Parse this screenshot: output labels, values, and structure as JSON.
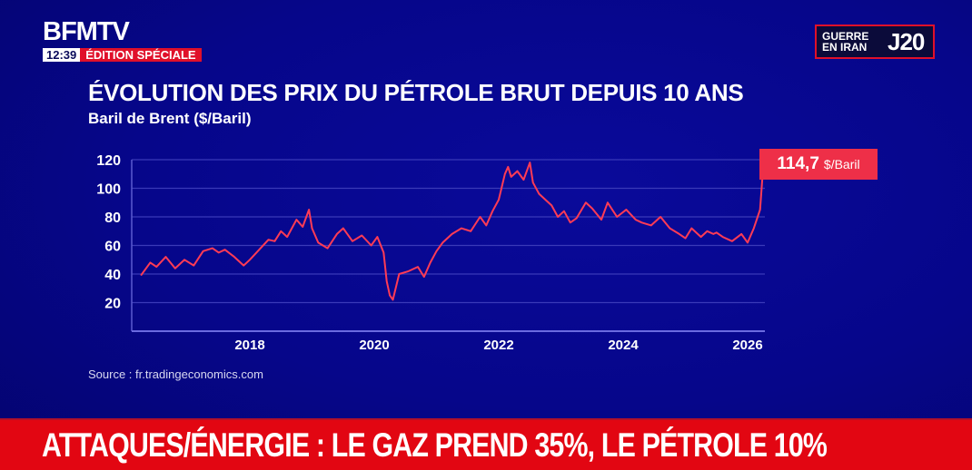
{
  "header": {
    "channel": "BFMTV",
    "time": "12:39",
    "edition": "ÉDITION SPÉCIALE",
    "badge_label_line1": "GUERRE",
    "badge_label_line2": "EN IRAN",
    "badge_day": "J20"
  },
  "callout": {
    "value": "114,7",
    "unit": "$/Baril"
  },
  "source": "Source : fr.tradingeconomics.com",
  "ticker": "ATTAQUES/ÉNERGIE : LE GAZ PREND 35%, LE PÉTROLE 10%",
  "colors": {
    "background": "#06068a",
    "line": "#ff3b55",
    "accent_red": "#e20612",
    "callout": "#ee2f48"
  },
  "chart_data": {
    "type": "line",
    "title": "ÉVOLUTION DES PRIX DU PÉTROLE BRUT DEPUIS 10 ANS",
    "subtitle": "Baril de Brent ($/Baril)",
    "xlabel": "",
    "ylabel": "",
    "ylim": [
      0,
      120
    ],
    "yticks": [
      20,
      40,
      60,
      80,
      100,
      120
    ],
    "xticks": [
      "2018",
      "2020",
      "2022",
      "2024",
      "2026"
    ],
    "xlim": [
      2016.0,
      2026.3
    ],
    "grid": true,
    "series": [
      {
        "name": "Brent",
        "x": [
          2016.25,
          2016.4,
          2016.5,
          2016.65,
          2016.8,
          2016.95,
          2017.1,
          2017.25,
          2017.4,
          2017.5,
          2017.6,
          2017.75,
          2017.9,
          2018.0,
          2018.15,
          2018.3,
          2018.4,
          2018.5,
          2018.6,
          2018.75,
          2018.85,
          2018.95,
          2019.0,
          2019.1,
          2019.25,
          2019.4,
          2019.5,
          2019.65,
          2019.8,
          2019.95,
          2020.05,
          2020.15,
          2020.2,
          2020.25,
          2020.3,
          2020.4,
          2020.55,
          2020.7,
          2020.8,
          2020.9,
          2021.0,
          2021.1,
          2021.25,
          2021.4,
          2021.55,
          2021.7,
          2021.8,
          2021.9,
          2022.0,
          2022.1,
          2022.15,
          2022.2,
          2022.3,
          2022.4,
          2022.5,
          2022.55,
          2022.65,
          2022.75,
          2022.85,
          2022.95,
          2023.05,
          2023.15,
          2023.25,
          2023.4,
          2023.5,
          2023.65,
          2023.75,
          2023.9,
          2024.05,
          2024.2,
          2024.3,
          2024.45,
          2024.6,
          2024.75,
          2024.9,
          2025.0,
          2025.1,
          2025.25,
          2025.35,
          2025.45,
          2025.5,
          2025.6,
          2025.75,
          2025.9,
          2026.0,
          2026.1,
          2026.2,
          2026.25
        ],
        "values": [
          39,
          48,
          45,
          52,
          44,
          50,
          46,
          56,
          58,
          55,
          57,
          52,
          46,
          50,
          57,
          64,
          63,
          70,
          66,
          78,
          73,
          85,
          72,
          62,
          58,
          68,
          72,
          63,
          67,
          60,
          66,
          55,
          35,
          25,
          22,
          40,
          42,
          45,
          38,
          48,
          56,
          62,
          68,
          72,
          70,
          80,
          74,
          84,
          92,
          110,
          115,
          108,
          112,
          106,
          118,
          104,
          96,
          92,
          88,
          80,
          84,
          76,
          79,
          90,
          86,
          78,
          90,
          80,
          85,
          78,
          76,
          74,
          80,
          72,
          68,
          65,
          72,
          66,
          70,
          68,
          69,
          66,
          63,
          68,
          62,
          72,
          85,
          114.7
        ]
      }
    ]
  }
}
